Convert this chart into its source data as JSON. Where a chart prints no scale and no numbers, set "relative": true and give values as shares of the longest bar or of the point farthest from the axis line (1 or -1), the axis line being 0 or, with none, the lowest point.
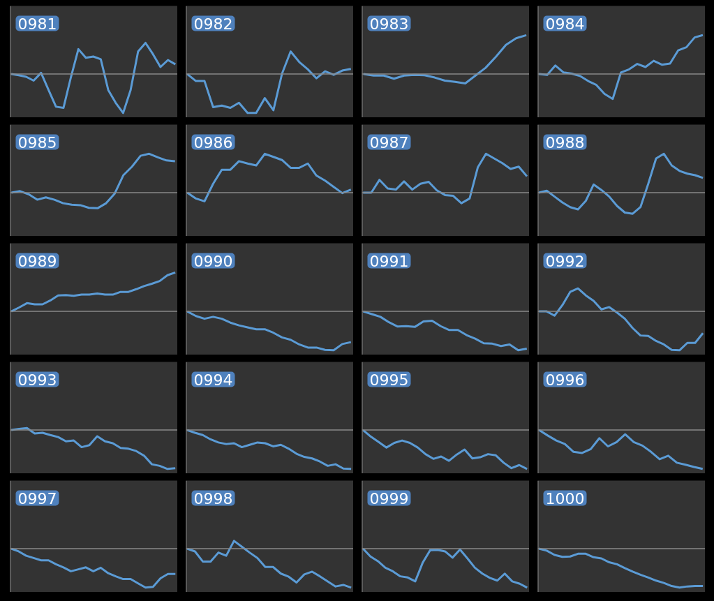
{
  "chart_data": [
    {
      "type": "line",
      "title": "0981",
      "relative": true,
      "categories": [
        null,
        null,
        null,
        null,
        null,
        null,
        null,
        null,
        null,
        null,
        null,
        null,
        null,
        null,
        null,
        null,
        null,
        null,
        null,
        null,
        null,
        null,
        null
      ],
      "series": [
        {
          "color": "#5b9bd5",
          "values": [
            0,
            -0.03,
            -0.07,
            -0.17,
            0.03,
            -0.41,
            -0.84,
            -0.87,
            -0.08,
            0.64,
            0.42,
            0.45,
            0.38,
            -0.41,
            -0.74,
            -1,
            -0.41,
            0.58,
            0.8,
            0.51,
            0.18,
            0.36,
            0.25
          ]
        }
      ]
    },
    {
      "type": "line",
      "title": "0982",
      "relative": true,
      "categories": [
        null,
        null,
        null,
        null,
        null,
        null,
        null,
        null,
        null,
        null,
        null,
        null,
        null,
        null,
        null,
        null,
        null,
        null,
        null,
        null
      ],
      "series": [
        {
          "color": "#5b9bd5",
          "values": [
            0,
            -0.18,
            -0.18,
            -0.85,
            -0.81,
            -0.87,
            -0.74,
            -1,
            -1,
            -0.62,
            -0.93,
            0.01,
            0.58,
            0.31,
            0.12,
            -0.11,
            0.07,
            -0.02,
            0.09,
            0.13
          ]
        }
      ]
    },
    {
      "type": "line",
      "title": "0983",
      "relative": true,
      "categories": [
        null,
        null,
        null,
        null,
        null,
        null,
        null,
        null,
        null,
        null,
        null,
        null,
        null,
        null,
        null,
        null,
        null
      ],
      "series": [
        {
          "color": "#5b9bd5",
          "values": [
            0,
            -0.04,
            -0.04,
            -0.12,
            -0.04,
            -0.02,
            -0.03,
            -0.09,
            -0.17,
            -0.2,
            -0.24,
            -0.04,
            0.16,
            0.44,
            0.75,
            0.92,
            1
          ]
        }
      ]
    },
    {
      "type": "line",
      "title": "0984",
      "relative": true,
      "categories": [
        null,
        null,
        null,
        null,
        null,
        null,
        null,
        null,
        null,
        null,
        null,
        null,
        null,
        null,
        null,
        null,
        null,
        null,
        null,
        null,
        null
      ],
      "series": [
        {
          "color": "#5b9bd5",
          "values": [
            0,
            -0.02,
            0.22,
            0.04,
            0.01,
            -0.05,
            -0.18,
            -0.28,
            -0.51,
            -0.64,
            0.04,
            0.12,
            0.26,
            0.18,
            0.34,
            0.24,
            0.27,
            0.61,
            0.69,
            0.94,
            1
          ]
        }
      ]
    },
    {
      "type": "line",
      "title": "0985",
      "relative": true,
      "categories": [
        null,
        null,
        null,
        null,
        null,
        null,
        null,
        null,
        null,
        null,
        null,
        null,
        null,
        null,
        null,
        null,
        null,
        null,
        null,
        null
      ],
      "series": [
        {
          "color": "#5b9bd5",
          "values": [
            0,
            0.04,
            -0.04,
            -0.18,
            -0.12,
            -0.18,
            -0.27,
            -0.31,
            -0.32,
            -0.39,
            -0.4,
            -0.27,
            -0.02,
            0.45,
            0.67,
            0.95,
            1,
            0.91,
            0.83,
            0.81
          ]
        }
      ]
    },
    {
      "type": "line",
      "title": "0986",
      "relative": true,
      "categories": [
        null,
        null,
        null,
        null,
        null,
        null,
        null,
        null,
        null,
        null,
        null,
        null,
        null,
        null,
        null,
        null,
        null,
        null,
        null,
        null
      ],
      "series": [
        {
          "color": "#5b9bd5",
          "values": [
            0,
            -0.15,
            -0.22,
            0.23,
            0.59,
            0.59,
            0.81,
            0.75,
            0.7,
            1,
            0.92,
            0.84,
            0.64,
            0.64,
            0.75,
            0.44,
            0.31,
            0.15,
            -0.01,
            0.08
          ]
        }
      ]
    },
    {
      "type": "line",
      "title": "0987",
      "relative": true,
      "categories": [
        null,
        null,
        null,
        null,
        null,
        null,
        null,
        null,
        null,
        null,
        null,
        null,
        null,
        null,
        null,
        null,
        null,
        null,
        null,
        null,
        null
      ],
      "series": [
        {
          "color": "#5b9bd5",
          "values": [
            0,
            0,
            0.33,
            0.11,
            0.08,
            0.29,
            0.08,
            0.23,
            0.28,
            0.06,
            -0.06,
            -0.08,
            -0.27,
            -0.15,
            0.65,
            1,
            0.88,
            0.76,
            0.61,
            0.67,
            0.42
          ]
        }
      ]
    },
    {
      "type": "line",
      "title": "0988",
      "relative": true,
      "categories": [
        null,
        null,
        null,
        null,
        null,
        null,
        null,
        null,
        null,
        null,
        null,
        null,
        null,
        null,
        null,
        null,
        null,
        null,
        null,
        null,
        null,
        null
      ],
      "series": [
        {
          "color": "#5b9bd5",
          "values": [
            0,
            0.05,
            -0.1,
            -0.25,
            -0.37,
            -0.43,
            -0.21,
            0.21,
            0.07,
            -0.1,
            -0.34,
            -0.51,
            -0.54,
            -0.37,
            0.23,
            0.88,
            1,
            0.7,
            0.56,
            0.49,
            0.45,
            0.38
          ]
        }
      ]
    },
    {
      "type": "line",
      "title": "0989",
      "relative": true,
      "categories": [
        null,
        null,
        null,
        null,
        null,
        null,
        null,
        null,
        null,
        null,
        null,
        null,
        null,
        null,
        null,
        null,
        null,
        null,
        null,
        null,
        null,
        null
      ],
      "series": [
        {
          "color": "#5b9bd5",
          "values": [
            0,
            0.1,
            0.21,
            0.18,
            0.18,
            0.28,
            0.41,
            0.42,
            0.4,
            0.43,
            0.43,
            0.46,
            0.43,
            0.43,
            0.5,
            0.5,
            0.57,
            0.65,
            0.71,
            0.78,
            0.93,
            1
          ]
        }
      ]
    },
    {
      "type": "line",
      "title": "0990",
      "relative": true,
      "categories": [
        null,
        null,
        null,
        null,
        null,
        null,
        null,
        null,
        null,
        null,
        null,
        null,
        null,
        null,
        null,
        null,
        null,
        null,
        null,
        null
      ],
      "series": [
        {
          "color": "#5b9bd5",
          "values": [
            0,
            -0.12,
            -0.19,
            -0.14,
            -0.19,
            -0.29,
            -0.36,
            -0.41,
            -0.46,
            -0.46,
            -0.55,
            -0.67,
            -0.73,
            -0.85,
            -0.93,
            -0.93,
            -0.99,
            -1,
            -0.84,
            -0.79
          ]
        }
      ]
    },
    {
      "type": "line",
      "title": "0991",
      "relative": true,
      "categories": [
        null,
        null,
        null,
        null,
        null,
        null,
        null,
        null,
        null,
        null,
        null,
        null,
        null,
        null,
        null,
        null,
        null,
        null,
        null,
        null
      ],
      "series": [
        {
          "color": "#5b9bd5",
          "values": [
            0,
            -0.07,
            -0.14,
            -0.28,
            -0.39,
            -0.38,
            -0.4,
            -0.26,
            -0.24,
            -0.38,
            -0.48,
            -0.48,
            -0.61,
            -0.7,
            -0.82,
            -0.83,
            -0.89,
            -0.85,
            -1,
            -0.96
          ]
        }
      ]
    },
    {
      "type": "line",
      "title": "0992",
      "relative": true,
      "categories": [
        null,
        null,
        null,
        null,
        null,
        null,
        null,
        null,
        null,
        null,
        null,
        null,
        null,
        null,
        null,
        null,
        null,
        null,
        null,
        null,
        null,
        null
      ],
      "series": [
        {
          "color": "#5b9bd5",
          "values": [
            0,
            0,
            -0.11,
            0.16,
            0.5,
            0.59,
            0.41,
            0.27,
            0.05,
            0.11,
            -0.03,
            -0.19,
            -0.43,
            -0.62,
            -0.63,
            -0.76,
            -0.85,
            -0.99,
            -1,
            -0.81,
            -0.81,
            -0.56
          ]
        }
      ]
    },
    {
      "type": "line",
      "title": "0993",
      "relative": true,
      "categories": [
        null,
        null,
        null,
        null,
        null,
        null,
        null,
        null,
        null,
        null,
        null,
        null,
        null,
        null,
        null,
        null,
        null,
        null,
        null,
        null,
        null,
        null
      ],
      "series": [
        {
          "color": "#5b9bd5",
          "values": [
            0,
            0.03,
            0.05,
            -0.09,
            -0.07,
            -0.13,
            -0.18,
            -0.29,
            -0.27,
            -0.44,
            -0.39,
            -0.16,
            -0.29,
            -0.34,
            -0.46,
            -0.48,
            -0.54,
            -0.66,
            -0.88,
            -0.92,
            -1,
            -0.98
          ]
        }
      ]
    },
    {
      "type": "line",
      "title": "0994",
      "relative": true,
      "categories": [
        null,
        null,
        null,
        null,
        null,
        null,
        null,
        null,
        null,
        null,
        null,
        null,
        null,
        null,
        null,
        null,
        null,
        null,
        null,
        null,
        null,
        null
      ],
      "series": [
        {
          "color": "#5b9bd5",
          "values": [
            0,
            -0.07,
            -0.13,
            -0.24,
            -0.32,
            -0.36,
            -0.34,
            -0.44,
            -0.38,
            -0.32,
            -0.34,
            -0.42,
            -0.38,
            -0.48,
            -0.61,
            -0.69,
            -0.73,
            -0.81,
            -0.92,
            -0.88,
            -0.99,
            -1
          ]
        }
      ]
    },
    {
      "type": "line",
      "title": "0995",
      "relative": true,
      "categories": [
        null,
        null,
        null,
        null,
        null,
        null,
        null,
        null,
        null,
        null,
        null,
        null,
        null,
        null,
        null,
        null,
        null,
        null,
        null,
        null,
        null,
        null
      ],
      "series": [
        {
          "color": "#5b9bd5",
          "values": [
            0,
            -0.17,
            -0.31,
            -0.45,
            -0.33,
            -0.27,
            -0.33,
            -0.45,
            -0.62,
            -0.74,
            -0.68,
            -0.79,
            -0.63,
            -0.5,
            -0.73,
            -0.7,
            -0.62,
            -0.65,
            -0.84,
            -0.98,
            -0.9,
            -1
          ]
        }
      ]
    },
    {
      "type": "line",
      "title": "0996",
      "relative": true,
      "categories": [
        null,
        null,
        null,
        null,
        null,
        null,
        null,
        null,
        null,
        null,
        null,
        null,
        null,
        null,
        null,
        null,
        null,
        null,
        null,
        null
      ],
      "series": [
        {
          "color": "#5b9bd5",
          "values": [
            0,
            -0.14,
            -0.27,
            -0.36,
            -0.56,
            -0.59,
            -0.49,
            -0.21,
            -0.42,
            -0.31,
            -0.11,
            -0.31,
            -0.4,
            -0.56,
            -0.75,
            -0.66,
            -0.84,
            -0.89,
            -0.95,
            -1
          ]
        }
      ]
    },
    {
      "type": "line",
      "title": "0997",
      "relative": true,
      "categories": [
        null,
        null,
        null,
        null,
        null,
        null,
        null,
        null,
        null,
        null,
        null,
        null,
        null,
        null,
        null,
        null,
        null,
        null,
        null,
        null,
        null,
        null,
        null
      ],
      "series": [
        {
          "color": "#5b9bd5",
          "values": [
            0,
            -0.07,
            -0.18,
            -0.24,
            -0.3,
            -0.3,
            -0.4,
            -0.48,
            -0.58,
            -0.53,
            -0.48,
            -0.58,
            -0.49,
            -0.63,
            -0.71,
            -0.78,
            -0.78,
            -0.89,
            -1,
            -0.98,
            -0.76,
            -0.65,
            -0.65
          ]
        }
      ]
    },
    {
      "type": "line",
      "title": "0998",
      "relative": true,
      "categories": [
        null,
        null,
        null,
        null,
        null,
        null,
        null,
        null,
        null,
        null,
        null,
        null,
        null,
        null,
        null,
        null,
        null,
        null,
        null,
        null,
        null,
        null
      ],
      "series": [
        {
          "color": "#5b9bd5",
          "values": [
            0,
            -0.07,
            -0.33,
            -0.33,
            -0.1,
            -0.18,
            0.2,
            0.05,
            -0.1,
            -0.24,
            -0.47,
            -0.47,
            -0.64,
            -0.72,
            -0.87,
            -0.66,
            -0.59,
            -0.71,
            -0.84,
            -0.97,
            -0.93,
            -1
          ]
        }
      ]
    },
    {
      "type": "line",
      "title": "0999",
      "relative": true,
      "categories": [
        null,
        null,
        null,
        null,
        null,
        null,
        null,
        null,
        null,
        null,
        null,
        null,
        null,
        null,
        null,
        null,
        null,
        null,
        null,
        null,
        null,
        null,
        null
      ],
      "series": [
        {
          "color": "#5b9bd5",
          "values": [
            0,
            -0.2,
            -0.32,
            -0.49,
            -0.58,
            -0.71,
            -0.74,
            -0.84,
            -0.36,
            -0.04,
            -0.03,
            -0.07,
            -0.23,
            -0.02,
            -0.25,
            -0.49,
            -0.64,
            -0.75,
            -0.82,
            -0.64,
            -0.84,
            -0.9,
            -1
          ]
        }
      ]
    },
    {
      "type": "line",
      "title": "1000",
      "relative": true,
      "categories": [
        null,
        null,
        null,
        null,
        null,
        null,
        null,
        null,
        null,
        null,
        null,
        null,
        null,
        null,
        null,
        null,
        null,
        null,
        null,
        null,
        null,
        null
      ],
      "series": [
        {
          "color": "#5b9bd5",
          "values": [
            0,
            -0.05,
            -0.16,
            -0.21,
            -0.2,
            -0.13,
            -0.13,
            -0.22,
            -0.25,
            -0.35,
            -0.4,
            -0.5,
            -0.59,
            -0.67,
            -0.74,
            -0.82,
            -0.88,
            -0.96,
            -1,
            -0.97,
            -0.96,
            -0.96
          ]
        }
      ]
    }
  ]
}
